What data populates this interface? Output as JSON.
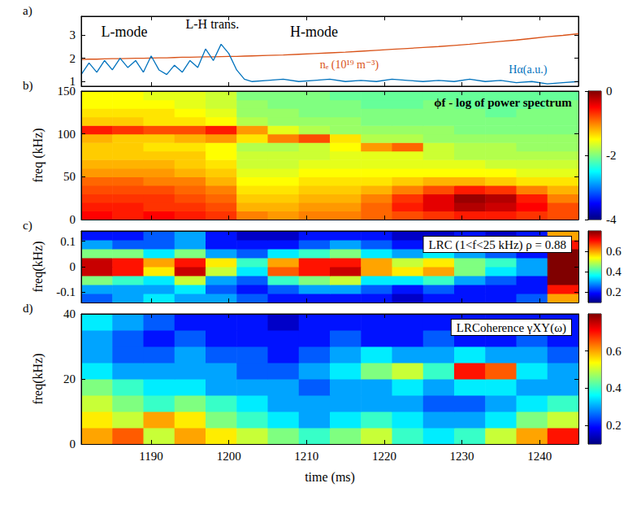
{
  "chart_data": [
    {
      "type": "line",
      "label": "a)",
      "annotations": [
        "L-mode",
        "L-H trans.",
        "H-mode"
      ],
      "x": [
        1181,
        1182,
        1183,
        1184,
        1185,
        1186,
        1187,
        1188,
        1189,
        1190,
        1191,
        1192,
        1193,
        1194,
        1195,
        1196,
        1197,
        1198,
        1199,
        1200,
        1201,
        1202,
        1203,
        1205,
        1207,
        1209,
        1211,
        1213,
        1215,
        1217,
        1219,
        1221,
        1223,
        1225,
        1227,
        1229,
        1231,
        1233,
        1235,
        1237,
        1239,
        1241,
        1243,
        1245
      ],
      "series": [
        {
          "name": "nₑ (10¹⁹ m⁻³)",
          "color": "#d95319",
          "values": [
            1.95,
            1.96,
            1.96,
            1.97,
            1.98,
            1.98,
            1.99,
            2.0,
            2.0,
            2.01,
            2.02,
            2.02,
            2.03,
            2.04,
            2.04,
            2.05,
            2.06,
            2.06,
            2.07,
            2.08,
            2.08,
            2.09,
            2.1,
            2.12,
            2.14,
            2.17,
            2.2,
            2.23,
            2.26,
            2.3,
            2.34,
            2.38,
            2.42,
            2.46,
            2.5,
            2.55,
            2.6,
            2.66,
            2.72,
            2.78,
            2.85,
            2.92,
            2.98,
            3.05
          ]
        },
        {
          "name": "Hα(a.u.)",
          "color": "#0072bd",
          "values": [
            1.3,
            1.8,
            1.4,
            1.9,
            1.5,
            2.0,
            1.6,
            1.9,
            1.4,
            2.1,
            1.5,
            1.3,
            1.7,
            1.4,
            1.9,
            1.6,
            2.4,
            1.9,
            2.6,
            2.2,
            1.5,
            1.1,
            1.0,
            1.05,
            1.1,
            1.0,
            1.05,
            1.1,
            1.0,
            1.05,
            1.0,
            1.1,
            1.05,
            1.0,
            1.05,
            1.0,
            1.1,
            1.0,
            1.05,
            0.95,
            1.0,
            0.9,
            0.95,
            1.0
          ]
        }
      ],
      "xlim": [
        1181,
        1245
      ],
      "xticks": [
        1190,
        1200,
        1210,
        1220,
        1230,
        1240
      ],
      "ylim": [
        0.8,
        3.8
      ],
      "yticks": [
        1,
        2,
        3
      ],
      "tick_labels": "y"
    },
    {
      "type": "heatmap",
      "label": "b)",
      "title": "ϕf - log of power spectrum",
      "ylabel": "freq (kHz)",
      "xlim": [
        1181,
        1245
      ],
      "xticks": [
        1190,
        1200,
        1210,
        1220,
        1230,
        1240
      ],
      "ylim": [
        0,
        150
      ],
      "yticks": [
        0,
        50,
        100,
        150
      ],
      "tick_labels": "y",
      "x_edges": [
        1181,
        1185,
        1189,
        1193,
        1197,
        1201,
        1205,
        1209,
        1213,
        1217,
        1221,
        1225,
        1229,
        1233,
        1237,
        1241,
        1245
      ],
      "y_edges": [
        0,
        10,
        20,
        30,
        40,
        50,
        60,
        70,
        80,
        90,
        100,
        110,
        120,
        130,
        140,
        150
      ],
      "cells": [
        [
          -0.5,
          -0.6,
          -0.5,
          -0.6,
          -0.7,
          -1.0,
          -1.1,
          -1.0,
          -1.0,
          -0.9,
          -0.8,
          -0.7,
          -0.6,
          -0.6,
          -0.7,
          -0.8
        ],
        [
          -0.6,
          -0.6,
          -0.7,
          -0.7,
          -0.8,
          -1.2,
          -1.2,
          -1.1,
          -1.1,
          -0.9,
          -0.6,
          -0.4,
          -0.2,
          -0.3,
          -0.5,
          -0.8
        ],
        [
          -0.7,
          -0.7,
          -0.7,
          -0.8,
          -0.9,
          -1.3,
          -1.3,
          -1.2,
          -1.2,
          -1.0,
          -0.7,
          -0.4,
          -0.1,
          -0.2,
          -0.6,
          -1.0
        ],
        [
          -0.8,
          -0.8,
          -0.8,
          -0.9,
          -1.0,
          -1.4,
          -1.4,
          -1.3,
          -1.3,
          -1.2,
          -1.0,
          -0.8,
          -0.6,
          -0.7,
          -1.0,
          -1.2
        ],
        [
          -0.9,
          -0.9,
          -1.0,
          -1.0,
          -1.2,
          -1.5,
          -1.5,
          -1.4,
          -1.4,
          -1.4,
          -1.3,
          -1.2,
          -1.2,
          -1.3,
          -1.4,
          -1.4
        ],
        [
          -1.1,
          -1.1,
          -1.1,
          -1.2,
          -1.3,
          -1.6,
          -1.6,
          -1.5,
          -1.5,
          -1.5,
          -1.5,
          -1.5,
          -1.5,
          -1.5,
          -1.6,
          -1.6
        ],
        [
          -1.2,
          -1.2,
          -1.2,
          -1.3,
          -1.4,
          -1.7,
          -1.7,
          -1.6,
          -1.6,
          -1.6,
          -1.6,
          -1.6,
          -1.6,
          -1.7,
          -1.7,
          -1.7
        ],
        [
          -1.3,
          -1.3,
          -1.3,
          -1.3,
          -1.5,
          -1.7,
          -1.7,
          -1.7,
          -1.6,
          -1.6,
          -1.6,
          -1.7,
          -1.8,
          -1.8,
          -1.8,
          -1.8
        ],
        [
          -1.3,
          -1.3,
          -1.4,
          -1.4,
          -1.5,
          -1.8,
          -1.8,
          -1.7,
          -1.5,
          -1.1,
          -0.9,
          -1.7,
          -1.8,
          -1.8,
          -1.9,
          -1.9
        ],
        [
          -1.2,
          -1.3,
          -1.3,
          -1.2,
          -1.1,
          -1.4,
          -1.0,
          -0.8,
          -1.4,
          -1.8,
          -1.8,
          -1.9,
          -1.9,
          -1.9,
          -1.9,
          -1.9
        ],
        [
          -0.6,
          -0.7,
          -0.8,
          -0.8,
          -0.6,
          -1.1,
          -1.6,
          -1.8,
          -1.9,
          -1.9,
          -1.9,
          -1.9,
          -2.0,
          -2.0,
          -2.0,
          -2.0
        ],
        [
          -1.3,
          -1.3,
          -1.4,
          -1.4,
          -1.5,
          -1.8,
          -1.9,
          -1.9,
          -1.9,
          -2.0,
          -2.0,
          -2.0,
          -2.0,
          -2.0,
          -2.0,
          -2.0
        ],
        [
          -1.4,
          -1.4,
          -1.4,
          -1.5,
          -1.6,
          -1.9,
          -1.9,
          -2.0,
          -2.0,
          -2.0,
          -2.0,
          -2.0,
          -2.0,
          -2.1,
          -2.0,
          -2.0
        ],
        [
          -1.5,
          -1.5,
          -1.5,
          -1.6,
          -1.7,
          -1.9,
          -2.0,
          -2.0,
          -2.0,
          -2.1,
          -2.1,
          -2.0,
          -2.1,
          -2.1,
          -2.1,
          -2.0
        ],
        [
          -1.5,
          -1.5,
          -1.6,
          -1.6,
          -1.7,
          -2.0,
          -2.0,
          -2.0,
          -2.1,
          -2.1,
          -2.1,
          -2.1,
          -2.1,
          -2.1,
          -2.1,
          -2.1
        ]
      ],
      "colorbar": {
        "range": [
          -4,
          0
        ],
        "ticks": [
          0,
          -2,
          -4
        ]
      }
    },
    {
      "type": "heatmap",
      "label": "c)",
      "title": "LRC (1<f<25 kHz) ρ = 0.88",
      "ylabel": "freq(kHz)",
      "xlim": [
        1181,
        1245
      ],
      "xticks": [
        1190,
        1200,
        1210,
        1220,
        1230,
        1240
      ],
      "ylim": [
        -0.14,
        0.14
      ],
      "yticks": [
        -0.1,
        0,
        0.1
      ],
      "tick_labels": "y",
      "x_edges": [
        1181,
        1185,
        1189,
        1193,
        1197,
        1201,
        1205,
        1209,
        1213,
        1217,
        1221,
        1225,
        1229,
        1233,
        1237,
        1241,
        1245
      ],
      "y_edges": [
        -0.14,
        -0.105,
        -0.07,
        -0.035,
        0,
        0.035,
        0.07,
        0.105,
        0.14
      ],
      "cells": [
        [
          0.25,
          0.3,
          0.35,
          0.3,
          0.3,
          0.25,
          0.2,
          0.2,
          0.2,
          0.2,
          0.15,
          0.2,
          0.2,
          0.2,
          0.25,
          0.6
        ],
        [
          0.3,
          0.3,
          0.3,
          0.35,
          0.25,
          0.2,
          0.25,
          0.3,
          0.3,
          0.25,
          0.2,
          0.25,
          0.2,
          0.2,
          0.2,
          0.7
        ],
        [
          0.45,
          0.4,
          0.35,
          0.5,
          0.3,
          0.25,
          0.4,
          0.45,
          0.5,
          0.35,
          0.35,
          0.4,
          0.3,
          0.25,
          0.2,
          0.8
        ],
        [
          0.75,
          0.7,
          0.55,
          0.75,
          0.5,
          0.35,
          0.65,
          0.7,
          0.75,
          0.6,
          0.55,
          0.6,
          0.45,
          0.35,
          0.3,
          0.85
        ],
        [
          0.75,
          0.7,
          0.6,
          0.7,
          0.55,
          0.4,
          0.6,
          0.7,
          0.7,
          0.6,
          0.5,
          0.55,
          0.45,
          0.4,
          0.3,
          0.85
        ],
        [
          0.45,
          0.45,
          0.35,
          0.45,
          0.3,
          0.25,
          0.35,
          0.4,
          0.45,
          0.35,
          0.3,
          0.35,
          0.3,
          0.25,
          0.2,
          0.8
        ],
        [
          0.3,
          0.25,
          0.25,
          0.3,
          0.2,
          0.2,
          0.2,
          0.25,
          0.3,
          0.25,
          0.2,
          0.2,
          0.2,
          0.2,
          0.2,
          0.7
        ],
        [
          0.2,
          0.2,
          0.25,
          0.3,
          0.2,
          0.15,
          0.15,
          0.2,
          0.2,
          0.2,
          0.15,
          0.15,
          0.2,
          0.15,
          0.2,
          0.6
        ]
      ],
      "colorbar": {
        "range": [
          0.1,
          0.8
        ],
        "ticks": [
          0.2,
          0.4,
          0.6
        ]
      }
    },
    {
      "type": "heatmap",
      "label": "d)",
      "title": "LRCoherence γXY(ω)",
      "ylabel": "freq(kHz)",
      "xlabel": "time (ms)",
      "xlim": [
        1181,
        1245
      ],
      "xticks": [
        1190,
        1200,
        1210,
        1220,
        1230,
        1240
      ],
      "ylim": [
        0,
        40
      ],
      "yticks": [
        0,
        20,
        40
      ],
      "x_edges": [
        1181,
        1185,
        1189,
        1193,
        1197,
        1201,
        1205,
        1209,
        1213,
        1217,
        1221,
        1225,
        1229,
        1233,
        1237,
        1241,
        1245
      ],
      "y_edges": [
        0,
        5,
        10,
        15,
        20,
        25,
        30,
        35,
        40
      ],
      "cells": [
        [
          0.6,
          0.65,
          0.5,
          0.6,
          0.55,
          0.5,
          0.45,
          0.4,
          0.45,
          0.5,
          0.4,
          0.35,
          0.4,
          0.5,
          0.6,
          0.7
        ],
        [
          0.55,
          0.5,
          0.6,
          0.55,
          0.45,
          0.4,
          0.35,
          0.3,
          0.35,
          0.4,
          0.35,
          0.3,
          0.3,
          0.35,
          0.45,
          0.5
        ],
        [
          0.5,
          0.45,
          0.4,
          0.45,
          0.4,
          0.35,
          0.3,
          0.3,
          0.3,
          0.3,
          0.3,
          0.25,
          0.25,
          0.3,
          0.35,
          0.4
        ],
        [
          0.45,
          0.4,
          0.35,
          0.35,
          0.3,
          0.3,
          0.3,
          0.25,
          0.3,
          0.3,
          0.35,
          0.3,
          0.35,
          0.35,
          0.3,
          0.3
        ],
        [
          0.35,
          0.3,
          0.3,
          0.3,
          0.3,
          0.25,
          0.25,
          0.3,
          0.35,
          0.45,
          0.5,
          0.4,
          0.7,
          0.65,
          0.35,
          0.3
        ],
        [
          0.3,
          0.25,
          0.25,
          0.3,
          0.25,
          0.25,
          0.2,
          0.25,
          0.3,
          0.35,
          0.3,
          0.3,
          0.35,
          0.3,
          0.3,
          0.25
        ],
        [
          0.3,
          0.25,
          0.2,
          0.25,
          0.2,
          0.2,
          0.2,
          0.2,
          0.25,
          0.2,
          0.2,
          0.25,
          0.2,
          0.2,
          0.25,
          0.2
        ],
        [
          0.35,
          0.3,
          0.25,
          0.2,
          0.2,
          0.2,
          0.15,
          0.2,
          0.2,
          0.2,
          0.2,
          0.2,
          0.2,
          0.2,
          0.2,
          0.2
        ]
      ],
      "colorbar": {
        "range": [
          0.1,
          0.8
        ],
        "ticks": [
          0.2,
          0.4,
          0.6
        ]
      }
    }
  ]
}
